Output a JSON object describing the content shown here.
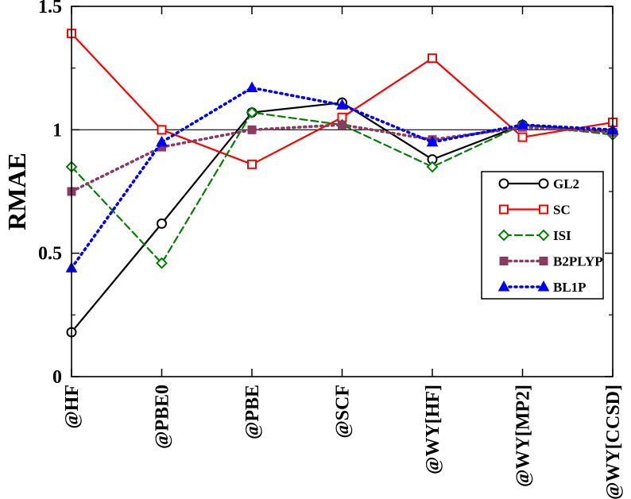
{
  "chart_data": {
    "type": "line",
    "title": "",
    "xlabel": "",
    "ylabel": "RMAE",
    "categories": [
      "@HF",
      "@PBE0",
      "@PBE",
      "@SCF",
      "@WY[HF]",
      "@WY[MP2]",
      "@WY[CCSD]"
    ],
    "ylim": [
      0,
      1.5
    ],
    "yticks": [
      0,
      0.5,
      1,
      1.5
    ],
    "ytick_labels": [
      "0",
      "0.5",
      "1",
      "1.5"
    ],
    "reference_line": 1,
    "grid": false,
    "legend_position": "right",
    "series": [
      {
        "name": "GL2",
        "values": [
          0.18,
          0.62,
          1.07,
          1.11,
          0.88,
          1.02,
          0.99
        ],
        "color": "#000000",
        "line_style": "solid",
        "marker": "circle-open"
      },
      {
        "name": "SC",
        "values": [
          1.39,
          1.0,
          0.86,
          1.05,
          1.29,
          0.97,
          1.03
        ],
        "color": "#ff0000",
        "line_style": "solid",
        "marker": "square-open"
      },
      {
        "name": "ISI",
        "values": [
          0.85,
          0.46,
          1.07,
          1.02,
          0.85,
          1.02,
          0.98
        ],
        "color": "#008000",
        "line_style": "dashed",
        "marker": "diamond-open"
      },
      {
        "name": "B2PLYP",
        "values": [
          0.75,
          0.93,
          1.0,
          1.02,
          0.96,
          1.01,
          0.99
        ],
        "color": "#8b3a62",
        "line_style": "dotted",
        "marker": "square-filled"
      },
      {
        "name": "BL1P",
        "values": [
          0.44,
          0.95,
          1.17,
          1.1,
          0.95,
          1.02,
          1.0
        ],
        "color": "#0000ff",
        "line_style": "dotted",
        "marker": "triangle-filled"
      }
    ]
  }
}
